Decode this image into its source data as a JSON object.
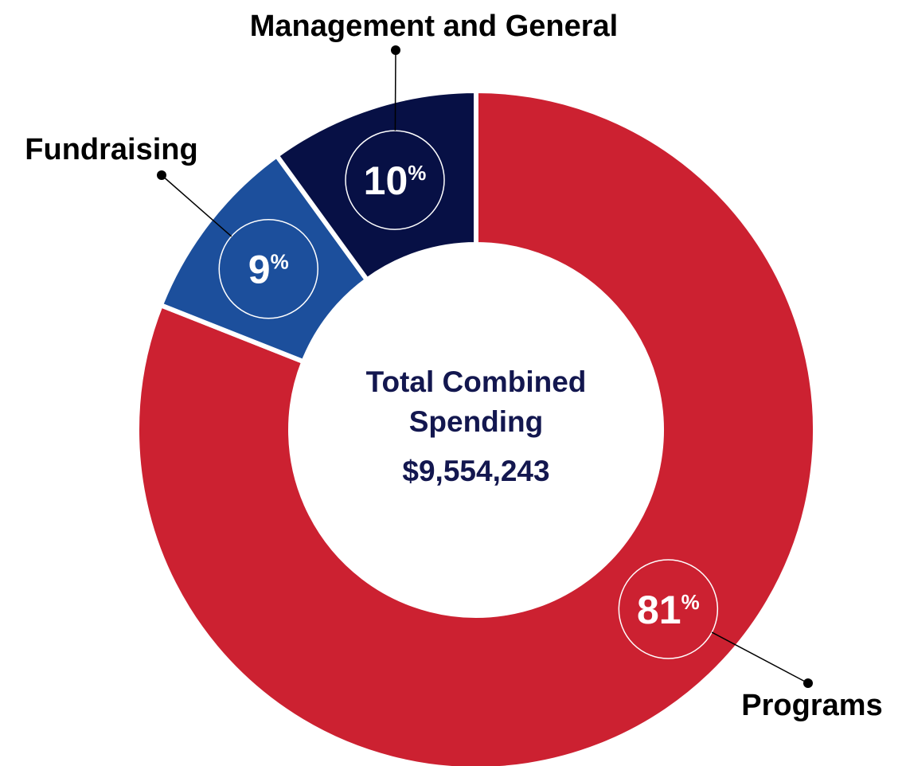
{
  "chart_data": {
    "type": "donut",
    "center_label": "Total Combined Spending",
    "center_value": "$9,554,243",
    "categories": [
      "Programs",
      "Fundraising",
      "Management and General"
    ],
    "values": [
      81,
      9,
      10
    ],
    "value_labels": [
      "81%",
      "9%",
      "10%"
    ],
    "colors": [
      "#cc2131",
      "#1c4f9c",
      "#071045"
    ]
  }
}
